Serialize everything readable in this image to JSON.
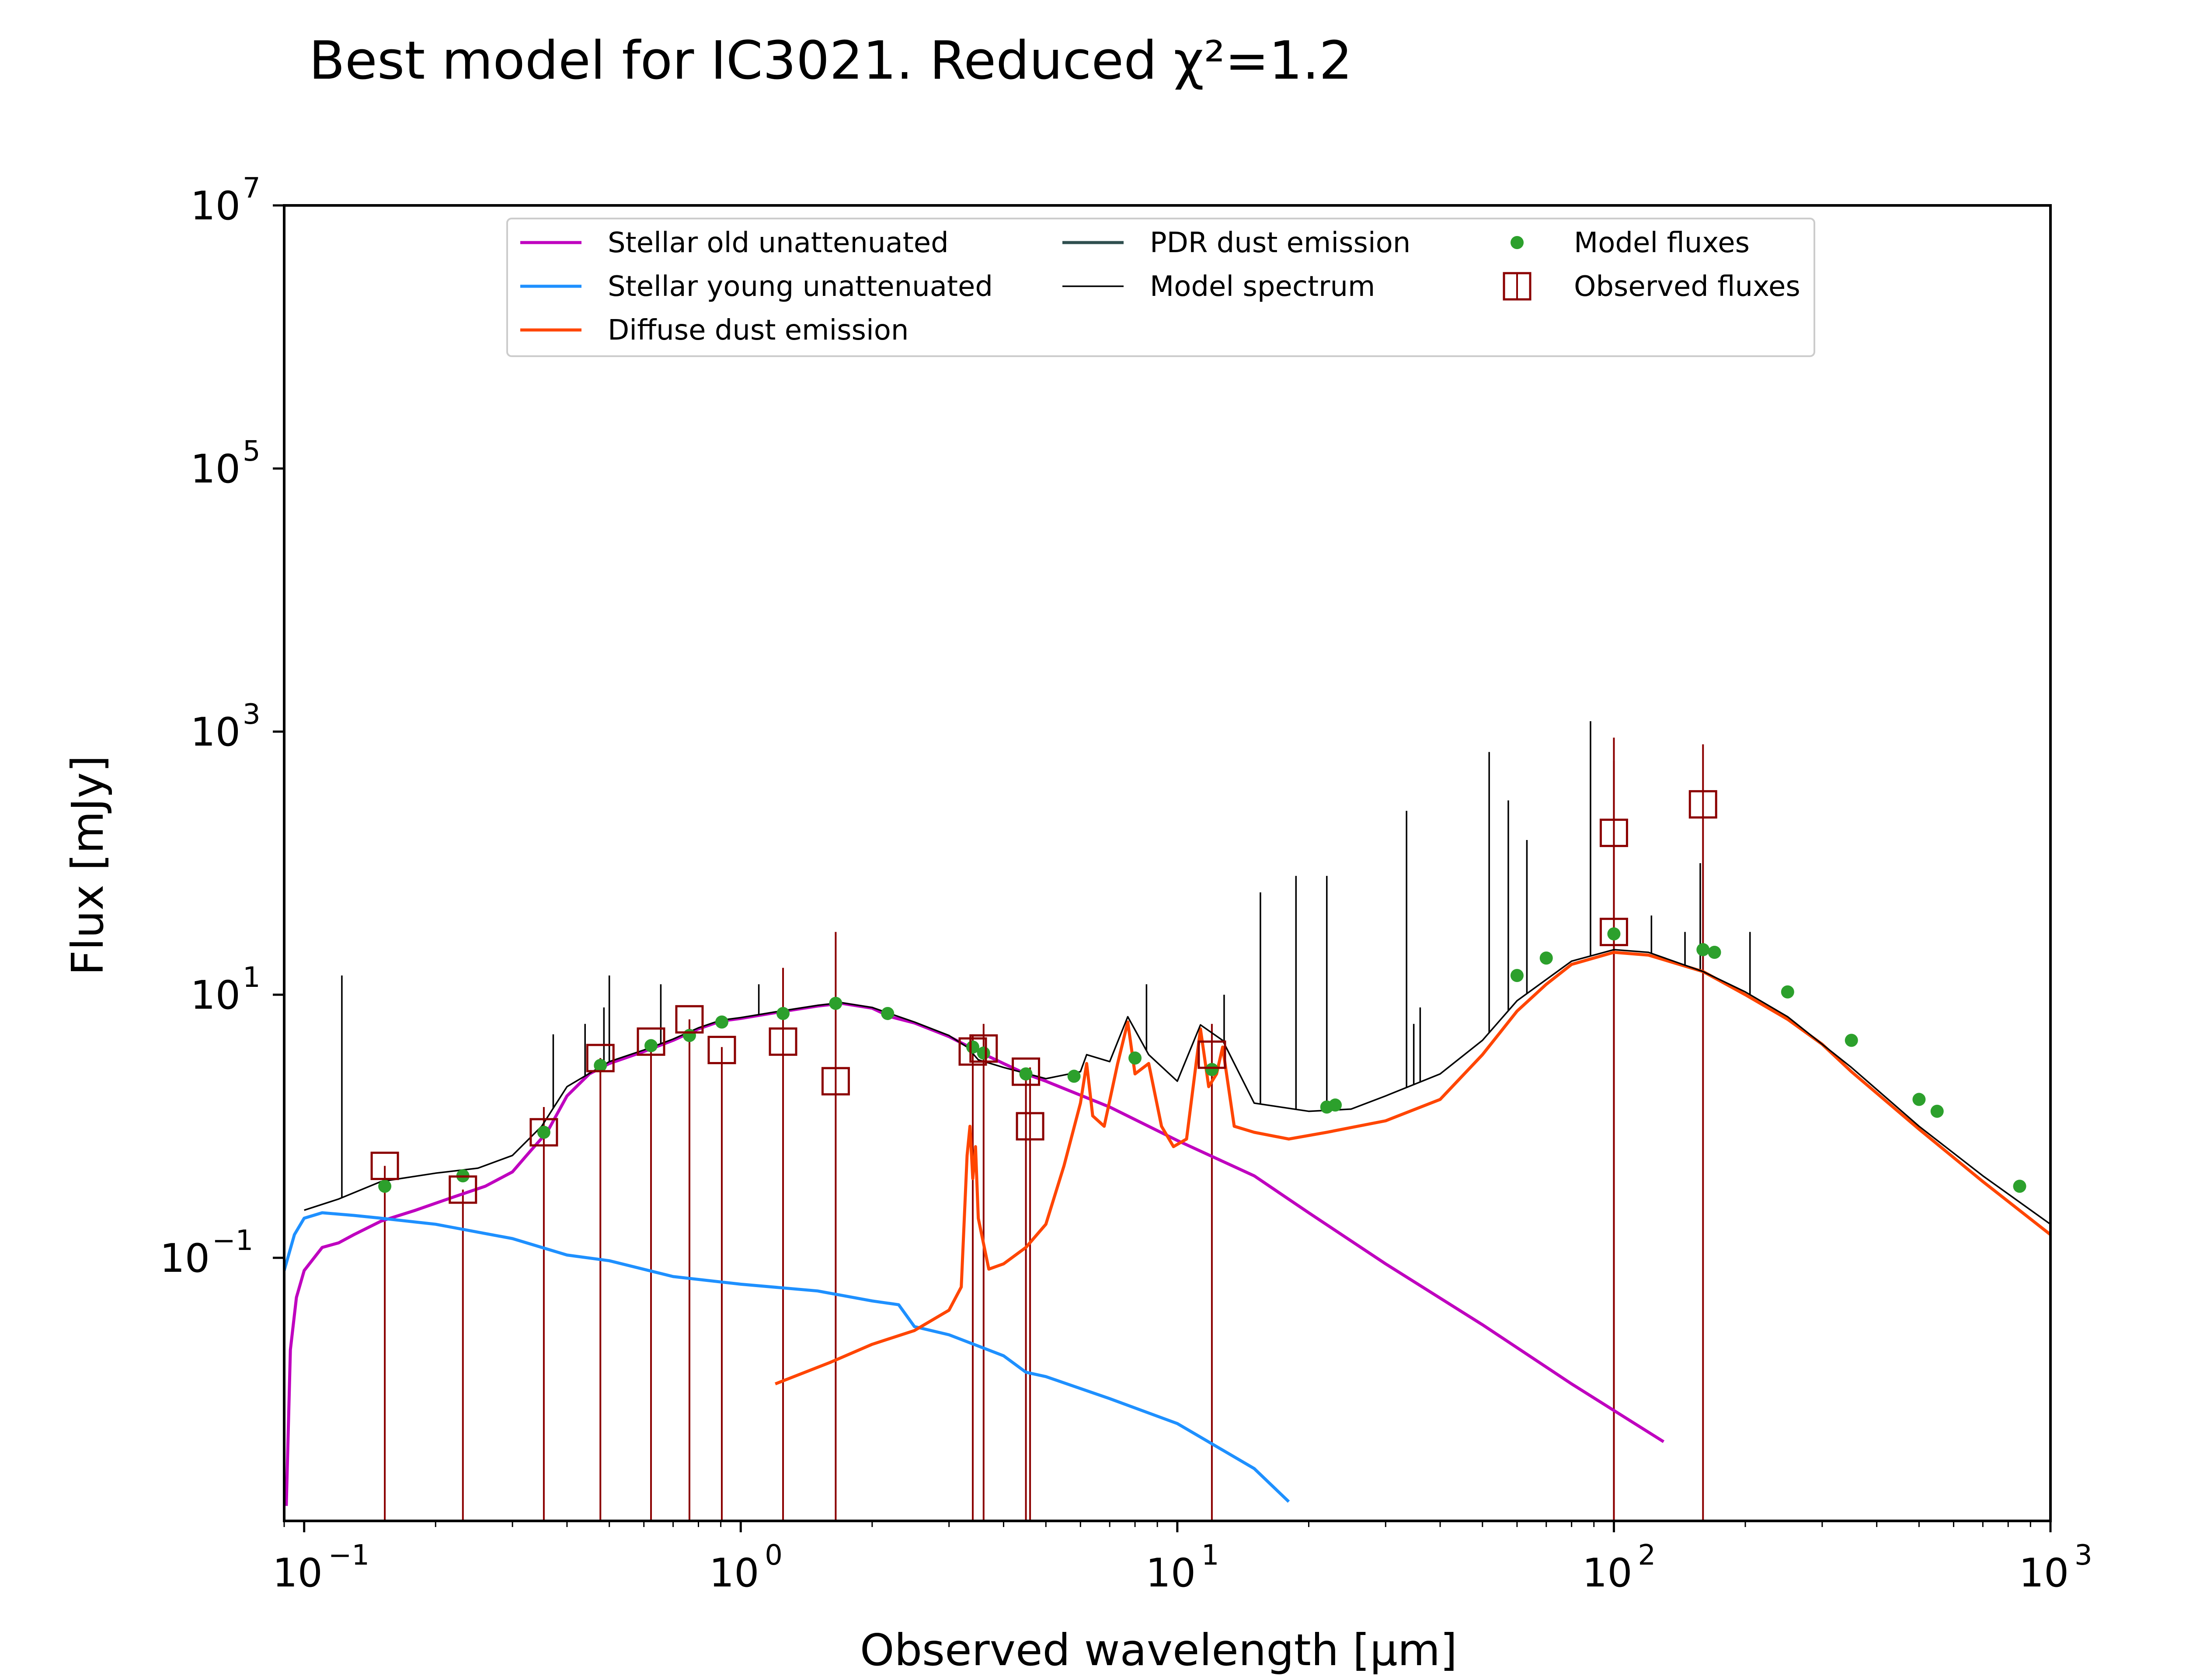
{
  "chart_data": {
    "type": "line",
    "title": "Best model for IC3021. Reduced χ²=1.2",
    "xlabel": "Observed wavelength [μm]",
    "ylabel": "Flux [mJy]",
    "xscale": "log",
    "yscale": "log",
    "xlim": [
      0.09,
      1000
    ],
    "ylim": [
      0.001,
      10000000
    ],
    "x_ticks": [
      {
        "value": 0.1,
        "base": "10",
        "exp": "−1"
      },
      {
        "value": 1,
        "base": "10",
        "exp": "0"
      },
      {
        "value": 10,
        "base": "10",
        "exp": "1"
      },
      {
        "value": 100,
        "base": "10",
        "exp": "2"
      },
      {
        "value": 1000,
        "base": "10",
        "exp": "3"
      }
    ],
    "y_ticks": [
      {
        "value": 0.1,
        "base": "10",
        "exp": "−1"
      },
      {
        "value": 10,
        "base": "10",
        "exp": "1"
      },
      {
        "value": 1000,
        "base": "10",
        "exp": "3"
      },
      {
        "value": 100000,
        "base": "10",
        "exp": "5"
      },
      {
        "value": 10000000,
        "base": "10",
        "exp": "7"
      }
    ],
    "legend_placement": "top-center",
    "legend": [
      {
        "label": "Stellar old unattenuated",
        "kind": "line",
        "color": "#bf00bf"
      },
      {
        "label": "Stellar young unattenuated",
        "kind": "line",
        "color": "#1e90ff"
      },
      {
        "label": "Diffuse dust emission",
        "kind": "line",
        "color": "#ff4500"
      },
      {
        "label": "PDR dust emission",
        "kind": "line",
        "color": "#2f4f4f"
      },
      {
        "label": "Model spectrum",
        "kind": "thinline",
        "color": "#000000"
      },
      {
        "label": "Model fluxes",
        "kind": "dot",
        "color": "#2ca02c"
      },
      {
        "label": "Observed fluxes",
        "kind": "square",
        "color": "#8b0000"
      }
    ],
    "series": [
      {
        "name": "Stellar old unattenuated",
        "color": "#bf00bf",
        "points": [
          [
            0.091,
            0.0013
          ],
          [
            0.093,
            0.02
          ],
          [
            0.096,
            0.05
          ],
          [
            0.1,
            0.08
          ],
          [
            0.11,
            0.12
          ],
          [
            0.12,
            0.13
          ],
          [
            0.13,
            0.15
          ],
          [
            0.15,
            0.19
          ],
          [
            0.18,
            0.23
          ],
          [
            0.22,
            0.29
          ],
          [
            0.26,
            0.35
          ],
          [
            0.3,
            0.45
          ],
          [
            0.33,
            0.65
          ],
          [
            0.36,
            0.9
          ],
          [
            0.4,
            1.7
          ],
          [
            0.45,
            2.5
          ],
          [
            0.5,
            3.0
          ],
          [
            0.6,
            3.7
          ],
          [
            0.7,
            4.5
          ],
          [
            0.8,
            5.5
          ],
          [
            0.9,
            6.3
          ],
          [
            1.0,
            6.6
          ],
          [
            1.2,
            7.3
          ],
          [
            1.5,
            8.2
          ],
          [
            1.7,
            8.6
          ],
          [
            2.0,
            7.9
          ],
          [
            2.2,
            6.8
          ],
          [
            2.5,
            6.1
          ],
          [
            3.0,
            4.8
          ],
          [
            3.5,
            3.7
          ],
          [
            4.0,
            3.0
          ],
          [
            4.5,
            2.5
          ],
          [
            5.0,
            2.2
          ],
          [
            7.0,
            1.4
          ],
          [
            10.0,
            0.78
          ],
          [
            15.0,
            0.42
          ],
          [
            20.0,
            0.22
          ],
          [
            30.0,
            0.09
          ],
          [
            50.0,
            0.031
          ],
          [
            80.0,
            0.011
          ],
          [
            130.0,
            0.004
          ]
        ]
      },
      {
        "name": "Stellar young unattenuated",
        "color": "#1e90ff",
        "points": [
          [
            0.09,
            0.08
          ],
          [
            0.095,
            0.15
          ],
          [
            0.1,
            0.2
          ],
          [
            0.11,
            0.22
          ],
          [
            0.13,
            0.21
          ],
          [
            0.15,
            0.2
          ],
          [
            0.2,
            0.18
          ],
          [
            0.3,
            0.14
          ],
          [
            0.4,
            0.105
          ],
          [
            0.5,
            0.095
          ],
          [
            0.7,
            0.072
          ],
          [
            1.0,
            0.063
          ],
          [
            1.5,
            0.056
          ],
          [
            2.0,
            0.047
          ],
          [
            2.3,
            0.044
          ],
          [
            2.5,
            0.03
          ],
          [
            3.0,
            0.026
          ],
          [
            4.0,
            0.018
          ],
          [
            4.5,
            0.0135
          ],
          [
            5.0,
            0.0125
          ],
          [
            7.0,
            0.0085
          ],
          [
            10.0,
            0.0055
          ],
          [
            15.0,
            0.0025
          ],
          [
            18.0,
            0.0014
          ]
        ]
      },
      {
        "name": "Diffuse dust emission",
        "color": "#ff4500",
        "points": [
          [
            1.2,
            0.011
          ],
          [
            1.6,
            0.016
          ],
          [
            2.0,
            0.022
          ],
          [
            2.5,
            0.028
          ],
          [
            3.0,
            0.04
          ],
          [
            3.2,
            0.06
          ],
          [
            3.3,
            0.6
          ],
          [
            3.35,
            1.0
          ],
          [
            3.4,
            0.4
          ],
          [
            3.45,
            0.7
          ],
          [
            3.5,
            0.2
          ],
          [
            3.7,
            0.082
          ],
          [
            4.0,
            0.09
          ],
          [
            4.5,
            0.12
          ],
          [
            5.0,
            0.18
          ],
          [
            5.5,
            0.5
          ],
          [
            6.0,
            1.5
          ],
          [
            6.2,
            3.0
          ],
          [
            6.4,
            1.2
          ],
          [
            6.8,
            1.0
          ],
          [
            7.3,
            3.0
          ],
          [
            7.7,
            6.2
          ],
          [
            8.0,
            2.5
          ],
          [
            8.6,
            3.0
          ],
          [
            9.2,
            1.0
          ],
          [
            9.8,
            0.7
          ],
          [
            10.5,
            0.8
          ],
          [
            11.3,
            5.5
          ],
          [
            11.8,
            2.0
          ],
          [
            12.3,
            2.5
          ],
          [
            12.7,
            4.0
          ],
          [
            13.5,
            1.0
          ],
          [
            15.0,
            0.9
          ],
          [
            18.0,
            0.8
          ],
          [
            22.0,
            0.9
          ],
          [
            30.0,
            1.1
          ],
          [
            40.0,
            1.6
          ],
          [
            50.0,
            3.5
          ],
          [
            60.0,
            7.5
          ],
          [
            70.0,
            12.0
          ],
          [
            80.0,
            17.0
          ],
          [
            100.0,
            21.0
          ],
          [
            120.0,
            20.0
          ],
          [
            160.0,
            15.0
          ],
          [
            200.0,
            10.0
          ],
          [
            250.0,
            6.5
          ],
          [
            300.0,
            4.2
          ],
          [
            350.0,
            2.6
          ],
          [
            500.0,
            0.95
          ],
          [
            700.0,
            0.38
          ],
          [
            1000.0,
            0.15
          ]
        ]
      },
      {
        "name": "Model spectrum",
        "color": "#000000",
        "points": [
          [
            0.1,
            0.23
          ],
          [
            0.12,
            0.28
          ],
          [
            0.15,
            0.38
          ],
          [
            0.2,
            0.44
          ],
          [
            0.25,
            0.48
          ],
          [
            0.3,
            0.6
          ],
          [
            0.35,
            1.0
          ],
          [
            0.4,
            2.0
          ],
          [
            0.5,
            3.1
          ],
          [
            0.6,
            3.8
          ],
          [
            0.7,
            4.6
          ],
          [
            0.8,
            5.6
          ],
          [
            0.9,
            6.4
          ],
          [
            1.0,
            6.7
          ],
          [
            1.2,
            7.4
          ],
          [
            1.5,
            8.3
          ],
          [
            1.7,
            8.7
          ],
          [
            2.0,
            8.0
          ],
          [
            2.5,
            6.2
          ],
          [
            3.0,
            4.9
          ],
          [
            3.3,
            4.0
          ],
          [
            3.5,
            3.2
          ],
          [
            4.0,
            2.8
          ],
          [
            5.0,
            2.3
          ],
          [
            6.0,
            2.6
          ],
          [
            6.2,
            3.5
          ],
          [
            7.0,
            3.1
          ],
          [
            7.7,
            6.8
          ],
          [
            8.6,
            3.5
          ],
          [
            10.0,
            2.2
          ],
          [
            11.3,
            5.9
          ],
          [
            12.7,
            4.5
          ],
          [
            15.0,
            1.5
          ],
          [
            20.0,
            1.3
          ],
          [
            25.0,
            1.35
          ],
          [
            30.0,
            1.7
          ],
          [
            40.0,
            2.5
          ],
          [
            50.0,
            4.5
          ],
          [
            60.0,
            9.0
          ],
          [
            80.0,
            18.0
          ],
          [
            100.0,
            22.0
          ],
          [
            120.0,
            21.0
          ],
          [
            160.0,
            15.0
          ],
          [
            200.0,
            10.5
          ],
          [
            250.0,
            6.8
          ],
          [
            350.0,
            2.8
          ],
          [
            500.0,
            1.0
          ],
          [
            700.0,
            0.42
          ],
          [
            1000.0,
            0.18
          ]
        ]
      }
    ],
    "model_spectrum_lines": [
      {
        "x": 0.122,
        "y": 14
      },
      {
        "x": 0.372,
        "y": 5
      },
      {
        "x": 0.44,
        "y": 6
      },
      {
        "x": 0.486,
        "y": 8
      },
      {
        "x": 0.5,
        "y": 14
      },
      {
        "x": 0.656,
        "y": 12
      },
      {
        "x": 0.9,
        "y": 6
      },
      {
        "x": 1.1,
        "y": 12
      },
      {
        "x": 2.0,
        "y": 8
      },
      {
        "x": 8.5,
        "y": 12
      },
      {
        "x": 12.8,
        "y": 10
      },
      {
        "x": 15.5,
        "y": 60
      },
      {
        "x": 18.7,
        "y": 80
      },
      {
        "x": 22.0,
        "y": 80
      },
      {
        "x": 33.5,
        "y": 250
      },
      {
        "x": 34.8,
        "y": 6
      },
      {
        "x": 36.0,
        "y": 8
      },
      {
        "x": 51.8,
        "y": 700
      },
      {
        "x": 57.3,
        "y": 300
      },
      {
        "x": 63.2,
        "y": 150
      },
      {
        "x": 88.4,
        "y": 1200
      },
      {
        "x": 121.9,
        "y": 40
      },
      {
        "x": 145.5,
        "y": 30
      },
      {
        "x": 157.7,
        "y": 100
      },
      {
        "x": 205.0,
        "y": 30
      }
    ],
    "model_fluxes": [
      [
        0.153,
        0.35
      ],
      [
        0.231,
        0.42
      ],
      [
        0.354,
        0.9
      ],
      [
        0.477,
        2.9
      ],
      [
        0.623,
        4.1
      ],
      [
        0.763,
        4.9
      ],
      [
        0.905,
        6.2
      ],
      [
        1.25,
        7.2
      ],
      [
        1.65,
        8.6
      ],
      [
        2.17,
        7.2
      ],
      [
        3.4,
        4.0
      ],
      [
        3.6,
        3.6
      ],
      [
        4.5,
        2.5
      ],
      [
        5.8,
        2.4
      ],
      [
        8.0,
        3.3
      ],
      [
        12.0,
        2.7
      ],
      [
        22.0,
        1.4
      ],
      [
        23.0,
        1.45
      ],
      [
        60.0,
        14.0
      ],
      [
        70.0,
        19.0
      ],
      [
        100.0,
        29.0
      ],
      [
        160.0,
        22.0
      ],
      [
        170.0,
        21.0
      ],
      [
        250.0,
        10.5
      ],
      [
        350.0,
        4.5
      ],
      [
        500.0,
        1.6
      ],
      [
        550.0,
        1.3
      ],
      [
        850.0,
        0.35
      ]
    ],
    "observed_fluxes": [
      {
        "x": 0.153,
        "y": 0.5,
        "yerr_top": 0.5
      },
      {
        "x": 0.231,
        "y": 0.33,
        "yerr_top": 0.33
      },
      {
        "x": 0.354,
        "y": 0.9,
        "yerr_top": 1.4
      },
      {
        "x": 0.477,
        "y": 3.3,
        "yerr_top": 3.3
      },
      {
        "x": 0.623,
        "y": 4.4,
        "yerr_top": 4.4
      },
      {
        "x": 0.763,
        "y": 6.5,
        "yerr_top": 6.5
      },
      {
        "x": 0.905,
        "y": 3.8,
        "yerr_top": 4.0
      },
      {
        "x": 1.25,
        "y": 4.4,
        "yerr_top": 16.0
      },
      {
        "x": 1.65,
        "y": 2.2,
        "yerr_top": 30.0
      },
      {
        "x": 3.4,
        "y": 3.7,
        "yerr_top": 5.0
      },
      {
        "x": 3.6,
        "y": 3.9,
        "yerr_top": 6.0
      },
      {
        "x": 4.5,
        "y": 2.6,
        "yerr_top": 2.6
      },
      {
        "x": 4.6,
        "y": 1.0,
        "yerr_top": 2.8
      },
      {
        "x": 12.0,
        "y": 3.5,
        "yerr_top": 6.0
      },
      {
        "x": 100.0,
        "y": 170.0,
        "yerr_top": 900.0
      },
      {
        "x": 100.0,
        "y": 30.0,
        "yerr_top": 600.0
      },
      {
        "x": 160.0,
        "y": 280.0,
        "yerr_top": 800.0
      }
    ]
  }
}
